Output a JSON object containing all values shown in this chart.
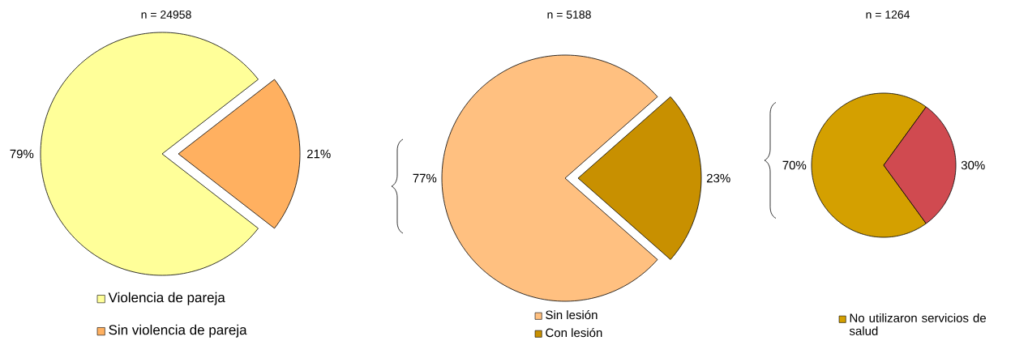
{
  "chart_data": [
    {
      "type": "pie",
      "title": "n = 24958",
      "categories": [
        "Violencia de pareja",
        "Sin violencia de pareja"
      ],
      "values": [
        79,
        21
      ],
      "value_labels": [
        "79%",
        "21%"
      ],
      "colors": [
        "#ffff99",
        "#ffb060"
      ],
      "legend": "bottom"
    },
    {
      "type": "pie",
      "title": "n = 5188",
      "categories": [
        "Sin lesión",
        "Con lesión"
      ],
      "values": [
        77,
        23
      ],
      "value_labels": [
        "77%",
        "23%"
      ],
      "colors": [
        "#ffc080",
        "#c89000"
      ],
      "legend": "bottom"
    },
    {
      "type": "pie",
      "title": "n = 1264",
      "categories": [
        "No utilizaron servicios de salud",
        null
      ],
      "values": [
        70,
        30
      ],
      "value_labels": [
        "70%",
        "30%"
      ],
      "colors": [
        "#d4a000",
        "#d04a50"
      ],
      "legend": "bottom"
    }
  ]
}
